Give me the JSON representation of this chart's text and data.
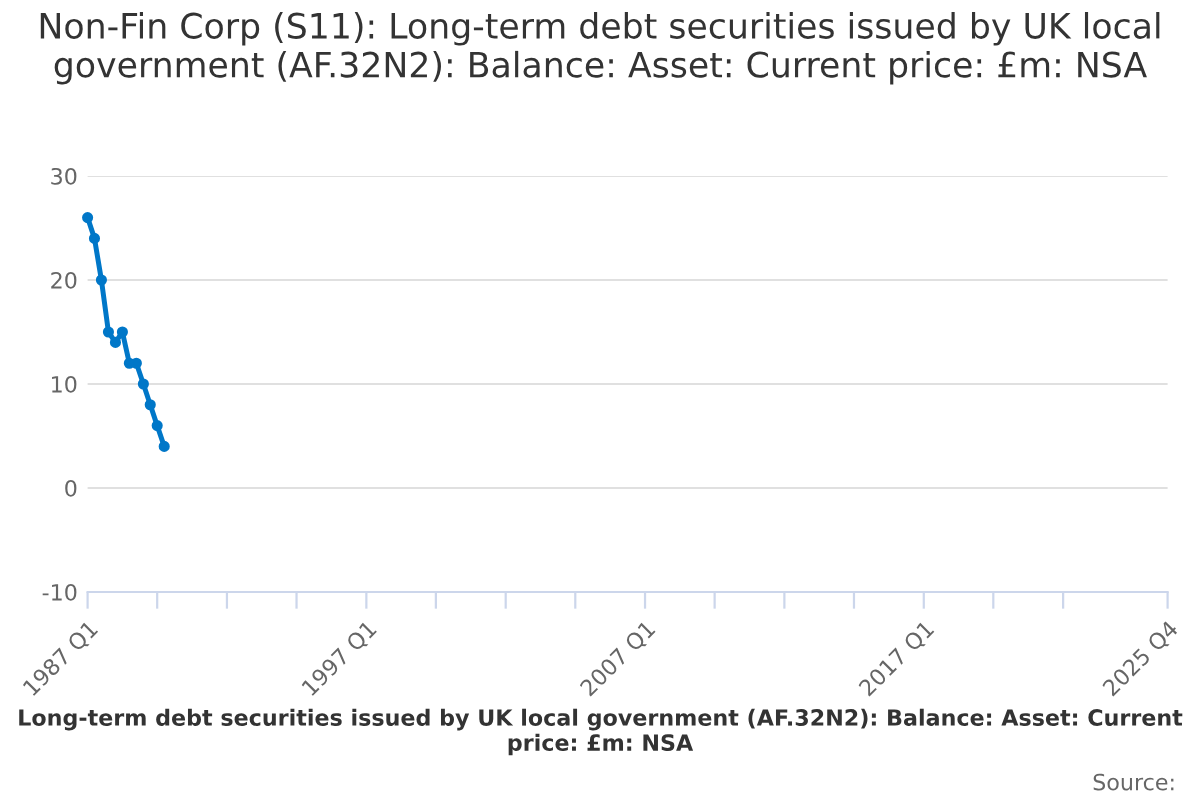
{
  "chart_data": {
    "type": "line",
    "title": "Non-Fin Corp (S11): Long-term debt securities issued by UK local government (AF.32N2): Balance: Asset: Current price: £m: NSA",
    "x": [
      "1987-01",
      "1987-04",
      "1987-07",
      "1987-10",
      "1988-01",
      "1988-04",
      "1988-07",
      "1988-10",
      "1989-01",
      "1989-04",
      "1989-07",
      "1989-10"
    ],
    "series": [
      {
        "color": "#0077c8",
        "values": [
          26,
          24,
          20,
          15,
          14,
          15,
          12,
          12,
          10,
          8,
          6,
          4
        ]
      }
    ],
    "xlim": [
      "1987-01",
      "2025-10"
    ],
    "xticks": [
      {
        "value": "1987-01",
        "label": "1987 Q1"
      },
      {
        "value": "1989-07",
        "label": null
      },
      {
        "value": "1992-01",
        "label": null
      },
      {
        "value": "1994-07",
        "label": null
      },
      {
        "value": "1997-01",
        "label": "1997 Q1"
      },
      {
        "value": "1999-07",
        "label": null
      },
      {
        "value": "2002-01",
        "label": null
      },
      {
        "value": "2004-07",
        "label": null
      },
      {
        "value": "2007-01",
        "label": "2007 Q1"
      },
      {
        "value": "2009-07",
        "label": null
      },
      {
        "value": "2012-01",
        "label": null
      },
      {
        "value": "2014-07",
        "label": null
      },
      {
        "value": "2017-01",
        "label": "2017 Q1"
      },
      {
        "value": "2019-07",
        "label": null
      },
      {
        "value": "2022-01",
        "label": null
      },
      {
        "value": "2025-10",
        "label": "2025 Q4"
      }
    ],
    "ylim": [
      -10,
      30
    ],
    "yticks": [
      -10,
      0,
      10,
      20,
      30
    ],
    "grid": "y",
    "marker": "circle",
    "line_style": "solid",
    "annotations": [
      "Long-term debt securities issued by UK local government (AF.32N2): Balance: Asset: Current price: £m: NSA",
      "Source:"
    ]
  }
}
